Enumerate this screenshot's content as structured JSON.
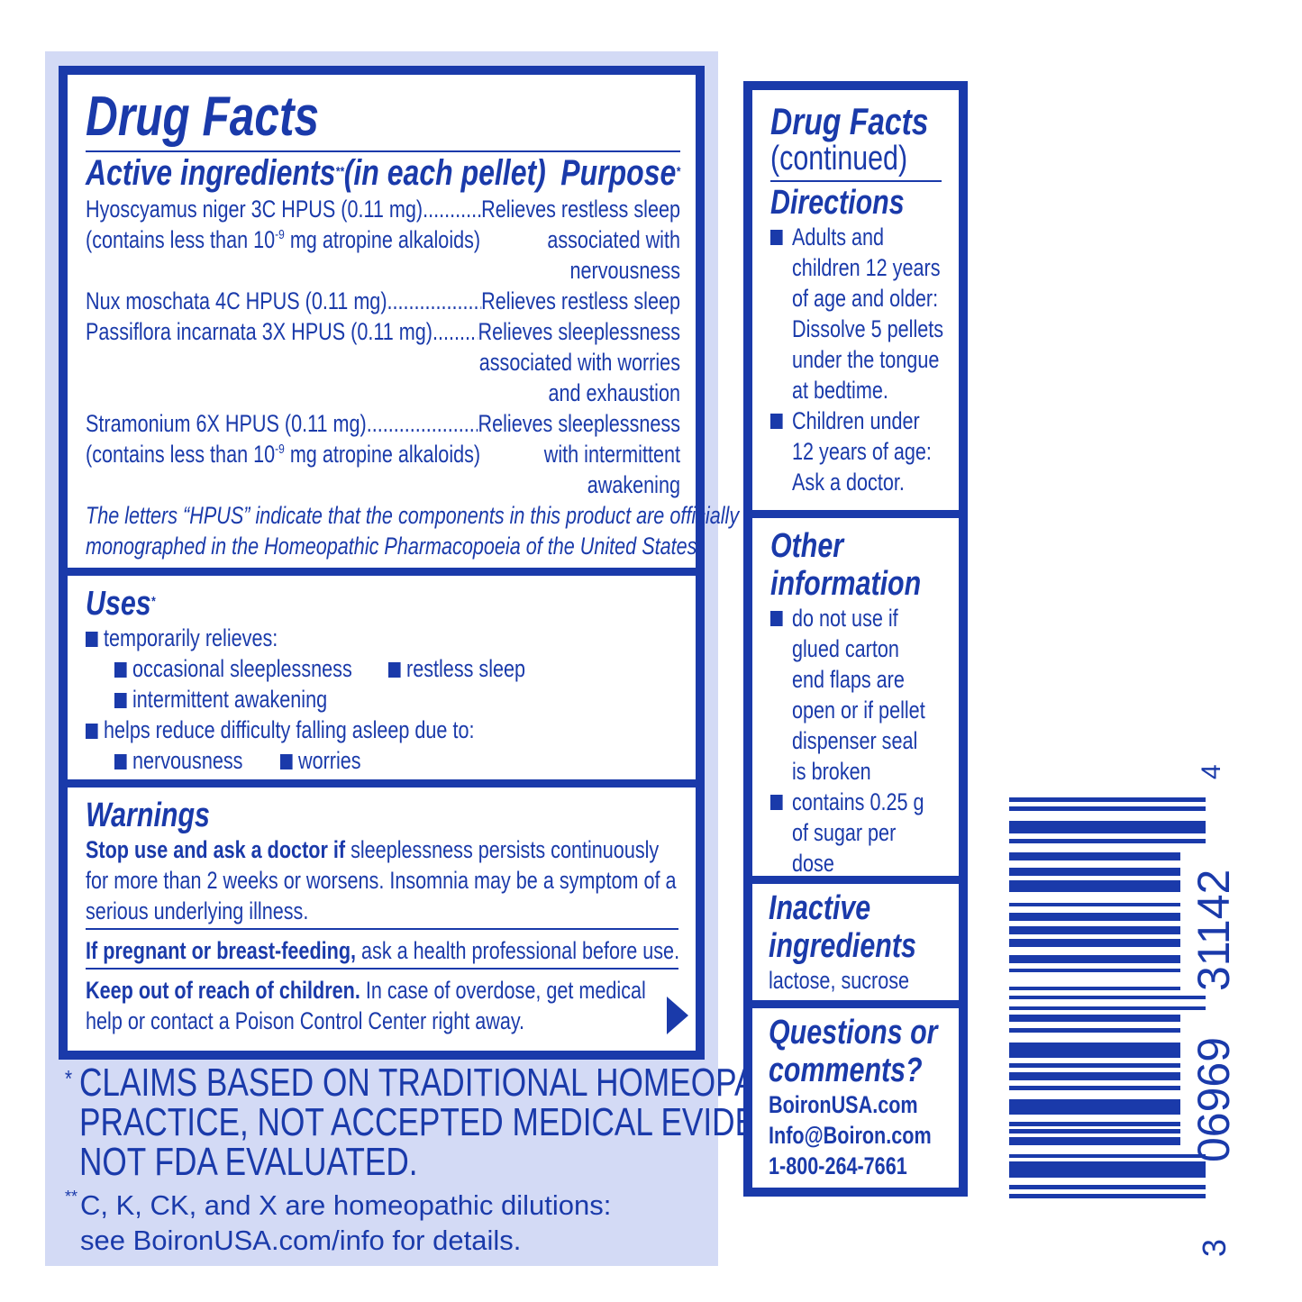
{
  "colors": {
    "brand_blue": "#1a3aaa",
    "panel_bg": "#d3daf5"
  },
  "left": {
    "title": "Drug Facts",
    "active_heading": "Active ingredients",
    "active_heading_mark": "**",
    "active_heading_suffix": "(in each pellet)",
    "purpose_heading": "Purpose",
    "purpose_mark": "*",
    "ingredients": [
      {
        "name": "Hyoscyamus niger 3C HPUS (0.11 mg)",
        "note_pre": "(contains less than 10",
        "note_exp": "-9",
        "note_post": " mg atropine alkaloids)",
        "purpose": [
          "Relieves restless sleep",
          "associated with",
          "nervousness"
        ]
      },
      {
        "name": "Nux moschata 4C HPUS (0.11 mg)",
        "purpose": [
          "Relieves restless sleep"
        ]
      },
      {
        "name": "Passiflora incarnata 3X HPUS (0.11 mg)",
        "purpose": [
          "Relieves sleeplessness",
          "associated with worries",
          "and exhaustion"
        ]
      },
      {
        "name": "Stramonium 6X HPUS (0.11 mg)",
        "note_pre": "(contains less than 10",
        "note_exp": "-9",
        "note_post": " mg atropine alkaloids)",
        "purpose": [
          "Relieves sleeplessness",
          "with intermittent",
          "awakening"
        ]
      }
    ],
    "hpus_note": [
      "The letters “HPUS” indicate that the components in this product are officially",
      "monographed in the Homeopathic Pharmacopoeia of the United States."
    ],
    "uses": {
      "heading": "Uses",
      "mark": "*",
      "items": [
        "temporarily relieves:",
        "occasional sleeplessness",
        "restless sleep",
        "intermittent awakening",
        "helps reduce difficulty falling asleep due to:",
        "nervousness",
        "worries"
      ]
    },
    "warnings": {
      "heading": "Warnings",
      "stop_bold": "Stop use and ask a doctor if",
      "stop_text": [
        " sleeplessness persists continuously",
        "for more than 2 weeks or worsens. Insomnia may be a symptom of a",
        "serious underlying illness."
      ],
      "preg_bold": "If pregnant or breast-feeding,",
      "preg_text": " ask a health professional before use.",
      "keep_bold": "Keep out of reach of children.",
      "keep_text": [
        " In case of overdose, get medical",
        "help or contact a Poison Control Center right away."
      ]
    },
    "footnotes": {
      "claims_mark": "*",
      "claims": [
        "CLAIMS BASED ON TRADITIONAL HOMEOPATHIC",
        "PRACTICE, NOT ACCEPTED MEDICAL EVIDENCE.",
        "NOT FDA EVALUATED."
      ],
      "dil_mark": "**",
      "dilutions": [
        "C, K, CK, and X are homeopathic dilutions:",
        "see BoironUSA.com/info for details."
      ]
    }
  },
  "right": {
    "title": "Drug Facts",
    "continued": "(continued)",
    "directions": {
      "heading": "Directions",
      "items": [
        [
          "Adults and",
          "children 12 years",
          "of age and older:",
          "Dissolve 5 pellets",
          "under the tongue",
          "at bedtime."
        ],
        [
          "Children under",
          "12 years of age:",
          "Ask a doctor."
        ]
      ]
    },
    "other": {
      "heading": [
        "Other",
        "information"
      ],
      "items": [
        [
          "do not use if",
          "glued carton",
          "end flaps are",
          "open or if pellet",
          "dispenser seal",
          "is broken"
        ],
        [
          "contains 0.25 g",
          "of sugar per",
          "dose"
        ]
      ]
    },
    "inactive": {
      "heading": [
        "Inactive",
        "ingredients"
      ],
      "text": "lactose, sucrose"
    },
    "questions": {
      "heading": [
        "Questions or",
        "comments?"
      ],
      "lines": [
        "BoironUSA.com",
        "Info@Boiron.com",
        "1-800-264-7661"
      ]
    }
  },
  "barcode": {
    "first": "3",
    "left_group": "06969",
    "right_group": "31142",
    "last": "4"
  }
}
